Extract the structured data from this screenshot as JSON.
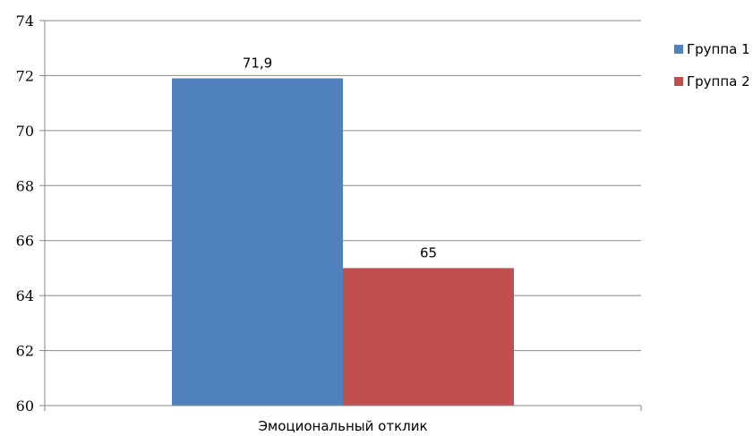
{
  "chart_data": {
    "type": "bar",
    "title": "",
    "xlabel": "",
    "ylabel": "",
    "categories": [
      "Эмоциональный отклик"
    ],
    "series": [
      {
        "name": "Группа 1",
        "values": [
          71.9
        ],
        "color": "#4F81BD",
        "label": "71,9"
      },
      {
        "name": "Группа 2",
        "values": [
          65
        ],
        "color": "#C0504D",
        "label": "65"
      }
    ],
    "ylim": [
      60,
      74
    ],
    "yticks": [
      "60",
      "62",
      "64",
      "66",
      "68",
      "70",
      "72",
      "74"
    ],
    "grid": true,
    "legend_position": "right"
  }
}
